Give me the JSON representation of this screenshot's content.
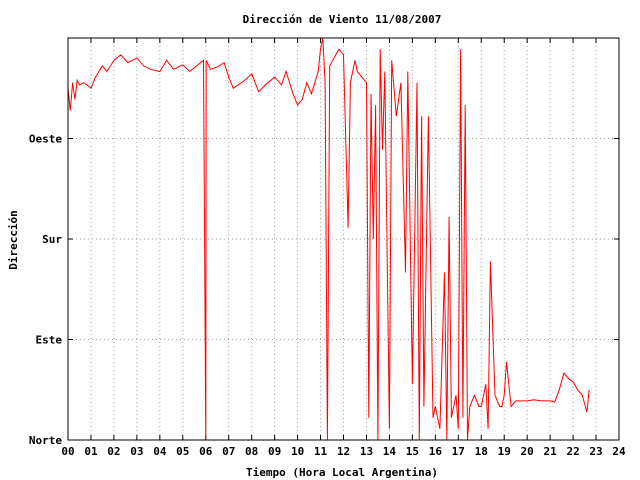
{
  "chart_data": {
    "type": "line",
    "title": "Dirección de Viento 11/08/2007",
    "xlabel": "Tiempo (Hora Local Argentina)",
    "ylabel": "Dirección",
    "xlim": [
      0,
      24
    ],
    "ylim": [
      0,
      360
    ],
    "x_ticks": [
      "00",
      "01",
      "02",
      "03",
      "04",
      "05",
      "06",
      "07",
      "08",
      "09",
      "10",
      "11",
      "12",
      "13",
      "14",
      "15",
      "16",
      "17",
      "18",
      "19",
      "20",
      "21",
      "22",
      "23",
      "24"
    ],
    "y_ticks": [
      {
        "label": "Norte",
        "value": 0
      },
      {
        "label": "Este",
        "value": 90
      },
      {
        "label": "Sur",
        "value": 180
      },
      {
        "label": "Oeste",
        "value": 270
      }
    ],
    "grid": true,
    "colors": {
      "series": "#ff0000",
      "grid": "#a0a0a0"
    },
    "series": [
      {
        "values": [
          [
            0.0,
            315
          ],
          [
            0.1,
            295
          ],
          [
            0.2,
            320
          ],
          [
            0.3,
            305
          ],
          [
            0.4,
            322
          ],
          [
            0.5,
            318
          ],
          [
            0.7,
            320
          ],
          [
            1.0,
            315
          ],
          [
            1.2,
            325
          ],
          [
            1.5,
            335
          ],
          [
            1.7,
            330
          ],
          [
            2.0,
            340
          ],
          [
            2.3,
            345
          ],
          [
            2.6,
            338
          ],
          [
            3.0,
            342
          ],
          [
            3.3,
            335
          ],
          [
            3.6,
            332
          ],
          [
            4.0,
            330
          ],
          [
            4.3,
            340
          ],
          [
            4.6,
            332
          ],
          [
            5.0,
            336
          ],
          [
            5.3,
            330
          ],
          [
            5.6,
            335
          ],
          [
            5.9,
            340
          ],
          [
            6.0,
            0
          ],
          [
            6.02,
            340
          ],
          [
            6.2,
            332
          ],
          [
            6.5,
            334
          ],
          [
            6.8,
            338
          ],
          [
            7.0,
            325
          ],
          [
            7.2,
            315
          ],
          [
            7.4,
            318
          ],
          [
            7.7,
            322
          ],
          [
            8.0,
            328
          ],
          [
            8.3,
            312
          ],
          [
            8.6,
            318
          ],
          [
            9.0,
            325
          ],
          [
            9.3,
            318
          ],
          [
            9.5,
            330
          ],
          [
            9.8,
            310
          ],
          [
            10.0,
            300
          ],
          [
            10.2,
            305
          ],
          [
            10.4,
            320
          ],
          [
            10.6,
            310
          ],
          [
            10.9,
            330
          ],
          [
            11.0,
            350
          ],
          [
            11.1,
            360
          ],
          [
            11.2,
            320
          ],
          [
            11.3,
            0
          ],
          [
            11.4,
            335
          ],
          [
            11.8,
            350
          ],
          [
            12.0,
            345
          ],
          [
            12.2,
            190
          ],
          [
            12.3,
            320
          ],
          [
            12.5,
            340
          ],
          [
            12.6,
            330
          ],
          [
            13.0,
            320
          ],
          [
            13.1,
            20
          ],
          [
            13.2,
            310
          ],
          [
            13.3,
            180
          ],
          [
            13.4,
            300
          ],
          [
            13.5,
            0
          ],
          [
            13.6,
            350
          ],
          [
            13.7,
            260
          ],
          [
            13.8,
            330
          ],
          [
            14.0,
            10
          ],
          [
            14.1,
            340
          ],
          [
            14.3,
            290
          ],
          [
            14.5,
            320
          ],
          [
            14.7,
            150
          ],
          [
            14.8,
            330
          ],
          [
            15.0,
            50
          ],
          [
            15.2,
            320
          ],
          [
            15.3,
            0
          ],
          [
            15.4,
            290
          ],
          [
            15.5,
            30
          ],
          [
            15.7,
            290
          ],
          [
            15.9,
            20
          ],
          [
            16.0,
            30
          ],
          [
            16.2,
            10
          ],
          [
            16.4,
            150
          ],
          [
            16.5,
            0
          ],
          [
            16.6,
            200
          ],
          [
            16.7,
            20
          ],
          [
            16.9,
            40
          ],
          [
            17.0,
            10
          ],
          [
            17.1,
            350
          ],
          [
            17.2,
            20
          ],
          [
            17.3,
            300
          ],
          [
            17.4,
            0
          ],
          [
            17.5,
            30
          ],
          [
            17.7,
            40
          ],
          [
            17.9,
            30
          ],
          [
            18.0,
            30
          ],
          [
            18.2,
            50
          ],
          [
            18.3,
            10
          ],
          [
            18.4,
            160
          ],
          [
            18.6,
            40
          ],
          [
            18.8,
            30
          ],
          [
            18.9,
            30
          ],
          [
            19.0,
            40
          ],
          [
            19.1,
            70
          ],
          [
            19.3,
            30
          ],
          [
            19.5,
            35
          ],
          [
            19.8,
            35
          ],
          [
            20.0,
            35
          ],
          [
            20.3,
            36
          ],
          [
            20.6,
            35
          ],
          [
            21.0,
            35
          ],
          [
            21.2,
            34
          ],
          [
            21.4,
            45
          ],
          [
            21.6,
            60
          ],
          [
            21.8,
            55
          ],
          [
            22.0,
            52
          ],
          [
            22.2,
            45
          ],
          [
            22.4,
            40
          ],
          [
            22.6,
            25
          ],
          [
            22.7,
            45
          ]
        ]
      }
    ]
  }
}
